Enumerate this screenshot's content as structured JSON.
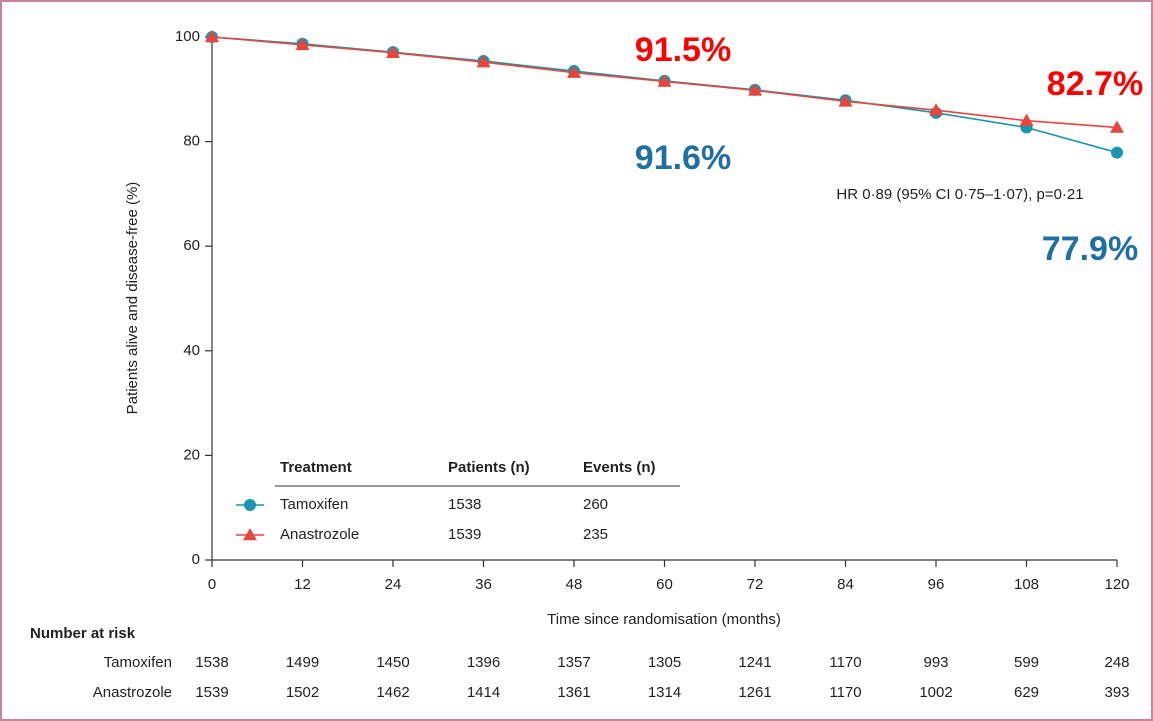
{
  "chart_data": {
    "type": "line",
    "x_label": "Time since randomisation (months)",
    "y_label": "Patients alive and disease-free (%)",
    "x": [
      0,
      12,
      24,
      36,
      48,
      60,
      72,
      84,
      96,
      108,
      120
    ],
    "series": [
      {
        "name": "Tamoxifen",
        "color": "#1a94b0",
        "marker": "circle",
        "patients": 1538,
        "events": 260,
        "values": [
          100,
          98.7,
          97.1,
          95.4,
          93.5,
          91.6,
          89.9,
          87.9,
          85.5,
          82.7,
          77.9
        ]
      },
      {
        "name": "Anastrozole",
        "color": "#e8453c",
        "marker": "triangle",
        "patients": 1539,
        "events": 235,
        "values": [
          100,
          98.5,
          97.0,
          95.2,
          93.2,
          91.5,
          89.8,
          87.7,
          86.0,
          84.0,
          82.7
        ]
      }
    ],
    "xlim": [
      0,
      120
    ],
    "ylim": [
      0,
      100
    ],
    "xticks": [
      0,
      12,
      24,
      36,
      48,
      60,
      72,
      84,
      96,
      108,
      120
    ],
    "yticks": [
      0,
      20,
      40,
      60,
      80,
      100
    ],
    "grid": false,
    "legend_headers": [
      "Treatment",
      "Patients (n)",
      "Events (n)"
    ],
    "annotations": [
      {
        "text": "91.5%",
        "color": "#ff0000"
      },
      {
        "text": "91.6%",
        "color": "#1f6fa3"
      },
      {
        "text": "82.7%",
        "color": "#ff0000"
      },
      {
        "text": "77.9%",
        "color": "#1f6fa3"
      },
      {
        "text": "HR 0·89 (95% CI 0·75–1·07), p=0·21",
        "color": "#222222"
      }
    ],
    "risk_table": {
      "title": "Number at risk",
      "rows": [
        {
          "name": "Tamoxifen",
          "values": [
            1538,
            1499,
            1450,
            1396,
            1357,
            1305,
            1241,
            1170,
            993,
            599,
            248
          ]
        },
        {
          "name": "Anastrozole",
          "values": [
            1539,
            1502,
            1462,
            1414,
            1361,
            1314,
            1261,
            1170,
            1002,
            629,
            393
          ]
        }
      ]
    }
  }
}
